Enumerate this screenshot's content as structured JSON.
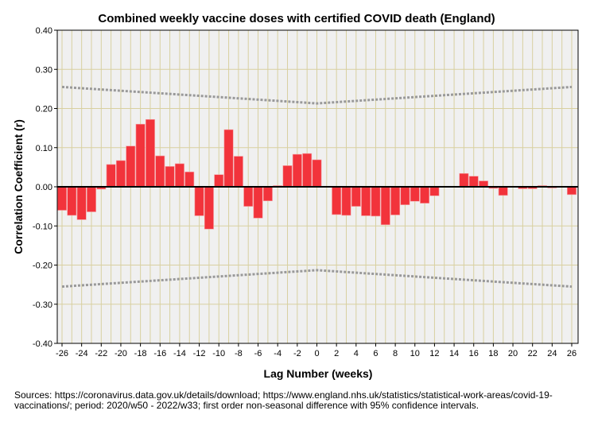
{
  "chart_data": {
    "type": "bar",
    "title": "Combined weekly vaccine doses with certified COVID death (England)",
    "xlabel": "Lag Number (weeks)",
    "ylabel": "Correlation Coefficient (r)",
    "ylim": [
      -0.4,
      0.4
    ],
    "yticks": [
      "0.40",
      "0.30",
      "0.20",
      "0.10",
      "0.00",
      "-0.10",
      "-0.20",
      "-0.30",
      "-0.40"
    ],
    "xticks": [
      "-26",
      "-24",
      "-22",
      "-20",
      "-18",
      "-16",
      "-14",
      "-12",
      "-10",
      "-8",
      "-6",
      "-4",
      "-2",
      "0",
      "2",
      "4",
      "6",
      "8",
      "10",
      "12",
      "14",
      "16",
      "18",
      "20",
      "22",
      "24",
      "26"
    ],
    "x": [
      -26,
      -25,
      -24,
      -23,
      -22,
      -21,
      -20,
      -19,
      -18,
      -17,
      -16,
      -15,
      -14,
      -13,
      -12,
      -11,
      -10,
      -9,
      -8,
      -7,
      -6,
      -5,
      -4,
      -3,
      -2,
      -1,
      0,
      1,
      2,
      3,
      4,
      5,
      6,
      7,
      8,
      9,
      10,
      11,
      12,
      13,
      14,
      15,
      16,
      17,
      18,
      19,
      20,
      21,
      22,
      23,
      24,
      25,
      26
    ],
    "values": [
      -0.06,
      -0.073,
      -0.084,
      -0.064,
      -0.006,
      0.057,
      0.067,
      0.104,
      0.16,
      0.172,
      0.079,
      0.052,
      0.059,
      0.038,
      -0.074,
      -0.108,
      0.031,
      0.146,
      0.078,
      -0.05,
      -0.08,
      -0.036,
      0.003,
      0.054,
      0.083,
      0.085,
      0.069,
      0,
      -0.071,
      -0.073,
      -0.05,
      -0.074,
      -0.075,
      -0.097,
      -0.072,
      -0.046,
      -0.037,
      -0.042,
      -0.023,
      0,
      0,
      0.034,
      0.027,
      0.015,
      -0.004,
      -0.022,
      0,
      -0.005,
      -0.005,
      0.003,
      -0.003,
      0,
      -0.02
    ],
    "confidence_upper_at_lag0": 0.213,
    "confidence_upper_at_lag26": 0.255,
    "confidence_level": "95%",
    "grid": true,
    "colors": {
      "bar": "#f2333b",
      "background": "#f0f0f0",
      "grid": "#d8d0a0",
      "bounds": "#999999"
    }
  },
  "sources": "Sources: https://coronavirus.data.gov.uk/details/download; https://www.england.nhs.uk/statistics/statistical-work-areas/covid-19-vaccinations/; period: 2020/w50 - 2022/w33; first order non-seasonal difference with 95% confidence intervals."
}
